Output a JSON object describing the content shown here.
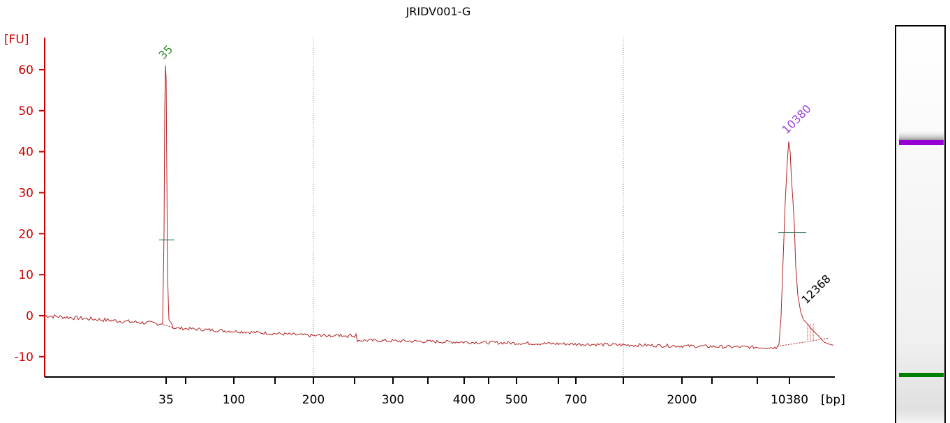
{
  "chart_data": {
    "type": "line",
    "title": "JRIDV001-G",
    "ylabel": "[FU]",
    "xlabel": "[bp]",
    "ylim": [
      -15,
      65
    ],
    "y_ticks": [
      -10,
      0,
      10,
      20,
      30,
      40,
      50,
      60
    ],
    "x_tick_labels": [
      "35",
      "100",
      "200",
      "300",
      "400",
      "500",
      "700",
      "2000",
      "10380"
    ],
    "x_axis": "electropherogram position (ladder-calibrated bp scale)",
    "series": [
      {
        "x": [
          "35",
          "35",
          "35",
          "35",
          "35",
          "35",
          "200",
          "300",
          "400",
          "500",
          "700",
          "2000",
          "10380",
          "10380",
          "10380",
          "10380",
          "10380",
          "12368"
        ],
        "y": [
          0,
          -1,
          -2,
          61,
          -2,
          -3,
          -5,
          -6,
          -6.5,
          -7,
          -7.2,
          -7.5,
          0,
          42.5,
          22,
          -2,
          -5,
          -7
        ]
      }
    ],
    "peaks": [
      {
        "label": "35",
        "height": 61,
        "color": "#2e8b2e"
      },
      {
        "label": "10380",
        "height": 42.5,
        "color": "#9b3fe0"
      },
      {
        "label": "12368",
        "height": 0,
        "color": "#000000"
      }
    ],
    "half_height_markers": [
      18.5,
      20.3
    ],
    "colors": {
      "axis": "#cc0000",
      "trace": "#b22222",
      "marker_peak_35": "#008000",
      "marker_peak_10380": "#9400d3",
      "gridline": "#888888"
    },
    "grid": "vertical dotted lines at 200 and 700 positions only"
  }
}
